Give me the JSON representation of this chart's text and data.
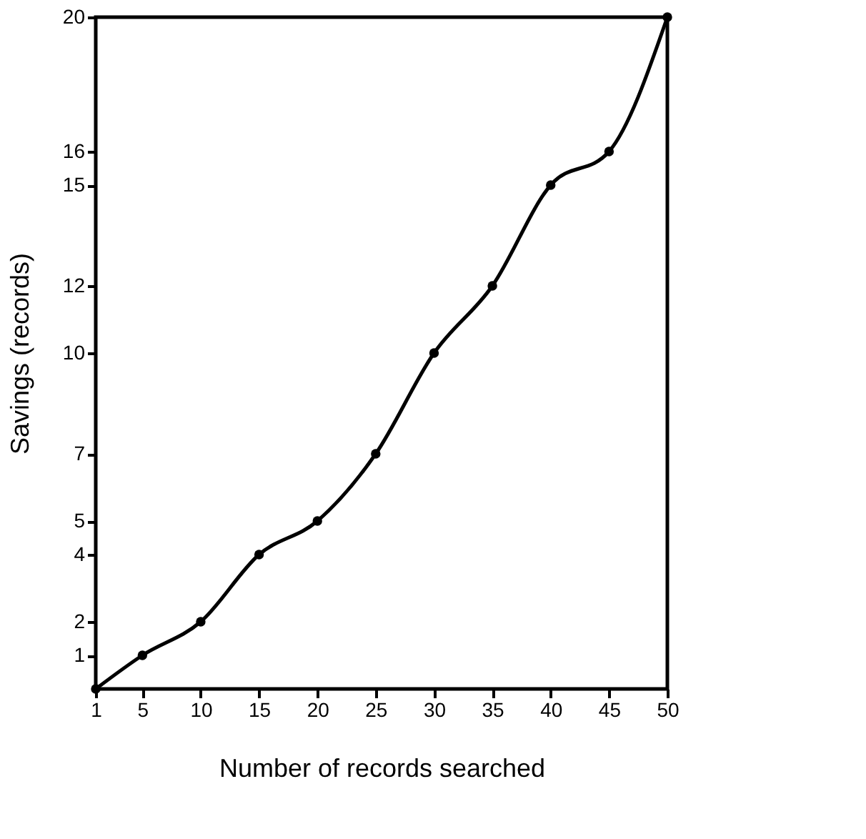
{
  "chart_data": {
    "type": "line",
    "xlabel": "Number of records searched",
    "ylabel": "Savings (records)",
    "x": [
      1,
      5,
      10,
      15,
      20,
      25,
      30,
      35,
      40,
      45,
      50
    ],
    "series": [
      {
        "color": "#000000",
        "values": [
          0,
          1,
          2,
          4,
          5,
          7,
          10,
          12,
          15,
          16,
          20
        ]
      }
    ],
    "xlim": [
      1,
      50
    ],
    "ylim": [
      0,
      20
    ],
    "xticks": [
      1,
      5,
      10,
      15,
      20,
      25,
      30,
      35,
      40,
      45,
      50
    ],
    "yticks": [
      1,
      2,
      4,
      5,
      7,
      10,
      12,
      15,
      16,
      20
    ],
    "grid": false,
    "marker": "circle",
    "line_style": "solid"
  }
}
